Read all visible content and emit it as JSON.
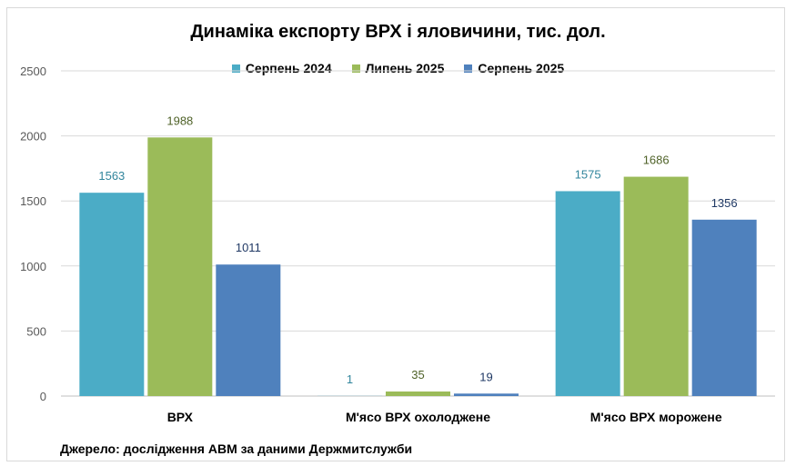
{
  "chart_data": {
    "type": "bar",
    "title": "Динаміка експорту ВРХ і яловичини, тис. дол.",
    "categories": [
      "ВРХ",
      "М'ясо ВРХ охолоджене",
      "М'ясо ВРХ морожене"
    ],
    "series": [
      {
        "name": "Серпень 2024",
        "values": [
          1563,
          1,
          1575
        ],
        "color": "#4bacc6",
        "label_color": "#31859c"
      },
      {
        "name": "Липень 2025",
        "values": [
          1988,
          35,
          1686
        ],
        "color": "#9bbb59",
        "label_color": "#4f6228"
      },
      {
        "name": "Серпень 2025",
        "values": [
          1011,
          19,
          1356
        ],
        "color": "#4f81bd",
        "label_color": "#1f3864"
      }
    ],
    "ylim": [
      0,
      2500
    ],
    "yticks": [
      0,
      500,
      1000,
      1500,
      2000,
      2500
    ],
    "grid": true,
    "legend_position": "top"
  },
  "source_note": "Джерело: дослідження АВМ за даними Держмитслужби"
}
